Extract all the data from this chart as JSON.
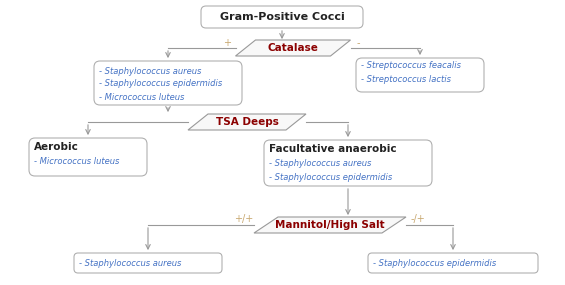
{
  "title": "Gram-Positive Cocci",
  "catalase_label": "Catalase",
  "tsa_label": "TSA Deeps",
  "mannitol_label": "Mannitol/High Salt",
  "catalase_plus": "+",
  "catalase_minus": "-",
  "mannitol_plus_label": "+/+",
  "mannitol_minus_label": "-/+",
  "box_catalase_pos": [
    "- Staphylococcus aureus",
    "- Staphylococcus epidermidis",
    "- Micrococcus luteus"
  ],
  "box_catalase_neg": [
    "- Streptococcus feacalis",
    "- Streptococcus lactis"
  ],
  "box_aerobic_title": "Aerobic",
  "box_aerobic_body": [
    "- Micrococcus luteus"
  ],
  "box_facultative_title": "Facultative anaerobic",
  "box_facultative_body": [
    "- Staphylococcus aureus",
    "- Staphylococcus epidermidis"
  ],
  "box_staph_aureus": "- Staphylococcus aureus",
  "box_staph_epidermidis": "- Staphylococcus epidermidis",
  "bg_color": "#ffffff",
  "box_border_color": "#b0b0b0",
  "arrow_color": "#999999",
  "title_color": "#222222",
  "para_fill": "#f8f8f8",
  "para_border": "#999999",
  "para_text_color": "#8B0000",
  "species_color": "#4472C4",
  "bold_text_color": "#222222",
  "sign_color": "#c8a870"
}
